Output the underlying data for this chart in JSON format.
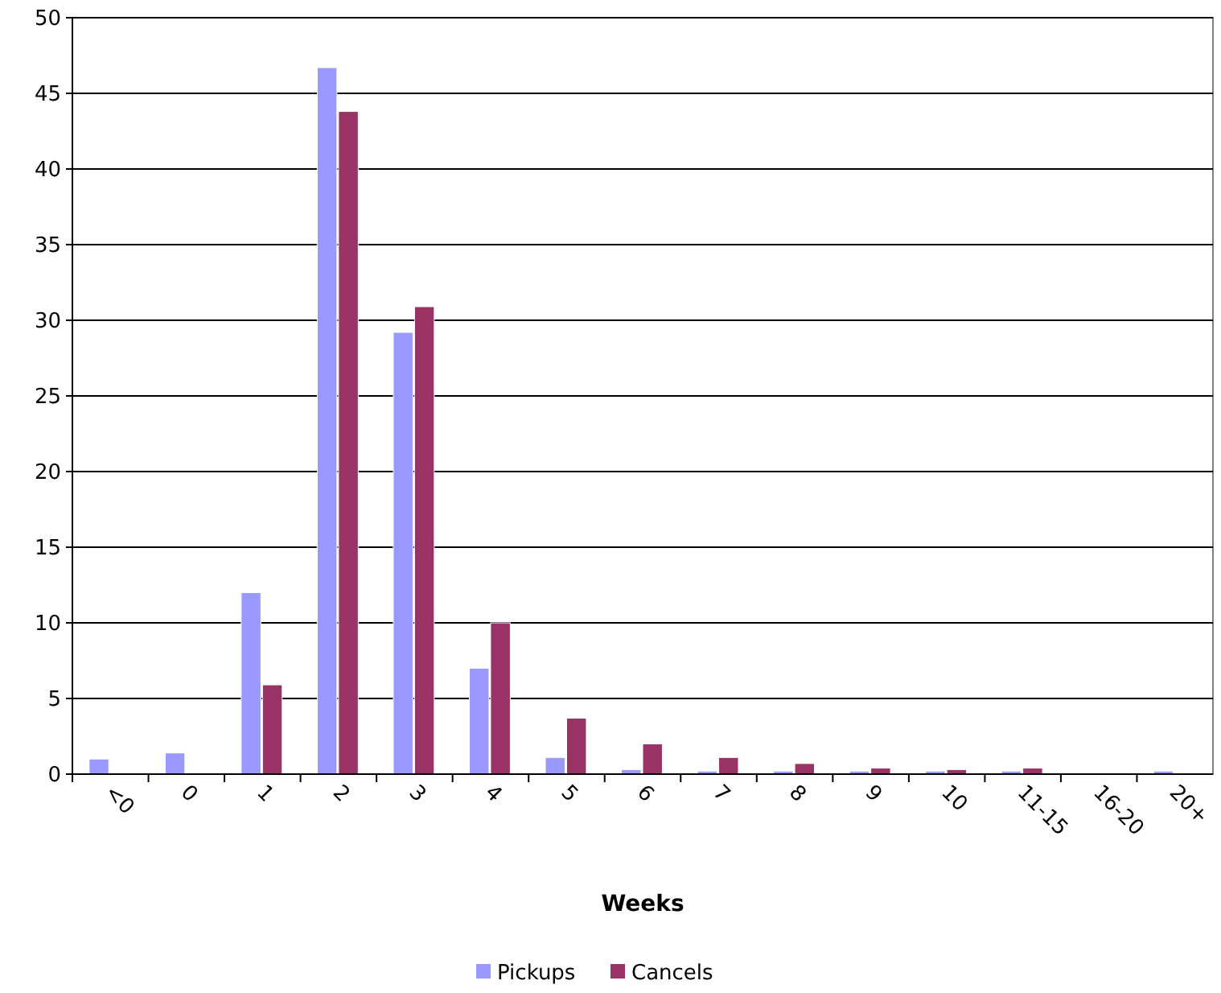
{
  "chart_data": {
    "type": "bar",
    "xlabel": "Weeks",
    "categories": [
      "<0",
      "0",
      "1",
      "2",
      "3",
      "4",
      "5",
      "6",
      "7",
      "8",
      "9",
      "10",
      "11-15",
      "16-20",
      "20+"
    ],
    "series": [
      {
        "name": "Pickups",
        "color": "#9999ff",
        "values": [
          1.0,
          1.4,
          12,
          46.7,
          29.2,
          7,
          1.1,
          0.3,
          0.2,
          0.2,
          0.2,
          0.2,
          0.2,
          0,
          0.2
        ]
      },
      {
        "name": "Cancels",
        "color": "#993366",
        "values": [
          0,
          0,
          5.9,
          43.8,
          30.9,
          10,
          3.7,
          2.0,
          1.1,
          0.7,
          0.4,
          0.3,
          0.4,
          0,
          0
        ]
      }
    ],
    "ylim": [
      0,
      50
    ],
    "yticks": [
      0,
      5,
      10,
      15,
      20,
      25,
      30,
      35,
      40,
      45,
      50
    ],
    "grid": "y",
    "legend": "bottom"
  }
}
